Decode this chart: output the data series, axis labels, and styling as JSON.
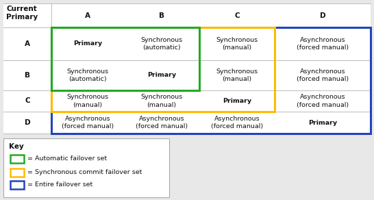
{
  "figsize": [
    5.46,
    2.92
  ],
  "dpi": 100,
  "bg_color": "#e8e8e8",
  "header_row": [
    "",
    "A",
    "B",
    "C",
    "D"
  ],
  "row_labels": [
    "A",
    "B",
    "C",
    "D"
  ],
  "cells": [
    [
      [
        "Primary",
        true
      ],
      [
        "Synchronous\n(automatic)",
        false
      ],
      [
        "Synchronous\n(manual)",
        false
      ],
      [
        "Asynchronous\n(forced manual)",
        false
      ]
    ],
    [
      [
        "Synchronous\n(automatic)",
        false
      ],
      [
        "Primary",
        true
      ],
      [
        "Synchronous\n(manual)",
        false
      ],
      [
        "Asynchronous\n(forced manual)",
        false
      ]
    ],
    [
      [
        "Synchronous\n(manual)",
        false
      ],
      [
        "Synchronous\n(manual)",
        false
      ],
      [
        "Primary",
        true
      ],
      [
        "Asynchronous\n(forced manual)",
        false
      ]
    ],
    [
      [
        "Asynchronous\n(forced manual)",
        false
      ],
      [
        "Asynchronous\n(forced manual)",
        false
      ],
      [
        "Asynchronous\n(forced manual)",
        false
      ],
      [
        "Primary",
        true
      ]
    ]
  ],
  "col_header_label": "Current\nPrimary",
  "green_color": "#22aa22",
  "yellow_color": "#ffbb00",
  "blue_color": "#2244bb",
  "key_items": [
    {
      "color": "#22aa22",
      "label": "= Automatic failover set"
    },
    {
      "color": "#ffbb00",
      "label": "= Synchronous commit failover set"
    },
    {
      "color": "#2244bb",
      "label": "= Entire failover set"
    }
  ],
  "font_size_header": 7.5,
  "font_size_cell": 6.8,
  "cell_text_color": "#111111",
  "header_text_color": "#111111",
  "table_line_color": "#bbbbbb",
  "table_bg": "#ffffff"
}
